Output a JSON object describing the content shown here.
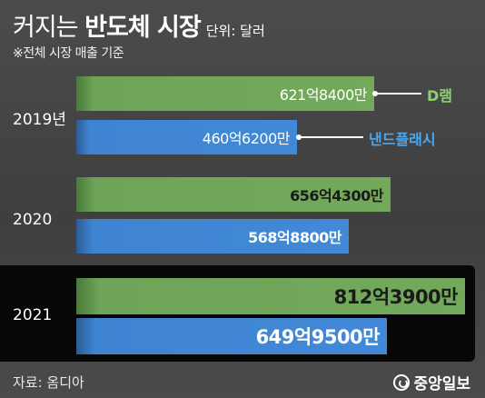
{
  "header": {
    "title_prefix": "커지는 ",
    "title_bold": "반도체 시장",
    "unit": "단위: 달러",
    "subtitle": "※전체 시장 매출 기준"
  },
  "footer": {
    "source": "자료: 옴디아",
    "logo": "중앙일보"
  },
  "colors": {
    "dram": "#73a95b",
    "nand": "#4189d6",
    "legend_dram": "#8fd16e",
    "legend_nand": "#49a8f2"
  },
  "chart_data": {
    "type": "bar",
    "orientation": "horizontal",
    "categories": [
      "2019년",
      "2020",
      "2021"
    ],
    "series": [
      {
        "name": "D램",
        "values": [
          621.84,
          656.43,
          812.39
        ],
        "labels": [
          "621억8400만",
          "656억4300만",
          "812억3900만"
        ]
      },
      {
        "name": "낸드플래시",
        "values": [
          460.62,
          568.88,
          649.95
        ],
        "labels": [
          "460억6200만",
          "568억8800만",
          "649억9500만"
        ]
      }
    ],
    "value_unit": "억 달러",
    "xlim": [
      0,
      812.39
    ]
  }
}
